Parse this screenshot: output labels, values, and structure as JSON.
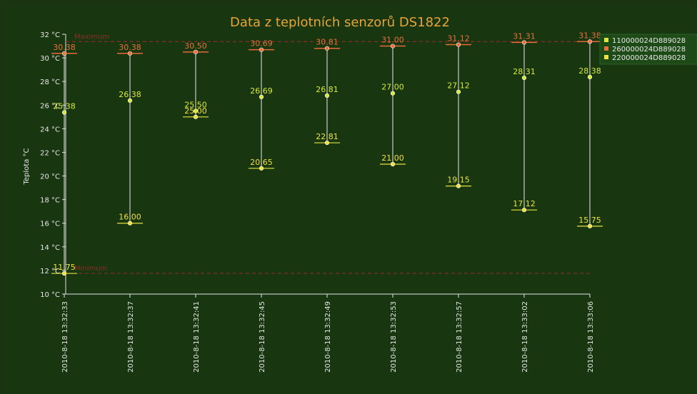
{
  "chart_data": {
    "type": "scatter",
    "title": "Data z teplotních senzorů DS1822",
    "ylabel": "Teplota °C",
    "xlabel": "",
    "ylim": [
      10,
      32
    ],
    "yticks": [
      10,
      12,
      14,
      16,
      18,
      20,
      22,
      24,
      26,
      28,
      30,
      32
    ],
    "ytick_suffix": " °C",
    "categories": [
      "2010-8-18 13:32:33",
      "2010-8-18 13:32:37",
      "2010-8-18 13:32:41",
      "2010-8-18 13:32:45",
      "2010-8-18 13:32:49",
      "2010-8-18 13:32:53",
      "2010-8-18 13:32:57",
      "2010-8-18 13:33:02",
      "2010-8-18 13:33:06"
    ],
    "series": [
      {
        "name": "110000024D889028",
        "color": "#d8e83a",
        "values": [
          25.38,
          26.38,
          25.5,
          26.69,
          26.81,
          27.0,
          27.12,
          28.31,
          28.38
        ],
        "labels": [
          "25.38",
          "26.38",
          "25.50",
          "26.69",
          "26.81",
          "27.00",
          "27.12",
          "28.31",
          "28.38"
        ]
      },
      {
        "name": "260000024D889028",
        "color": "#e8703a",
        "values": [
          30.38,
          30.38,
          30.5,
          30.69,
          30.81,
          31.0,
          31.12,
          31.31,
          31.38
        ],
        "labels": [
          "30.38",
          "30.38",
          "30.50",
          "30.69",
          "30.81",
          "31.00",
          "31.12",
          "31.31",
          "31.38"
        ]
      },
      {
        "name": "220000024D889028",
        "color": "#f0e040",
        "values": [
          11.75,
          16.0,
          25.0,
          20.65,
          22.81,
          21.0,
          19.15,
          17.12,
          15.75
        ],
        "labels": [
          "11.75",
          "16.00",
          "25.00",
          "20.65",
          "22.81",
          "21.00",
          "19.15",
          "17.12",
          "15.75"
        ]
      }
    ],
    "reference_lines": [
      {
        "label": "Maximum",
        "value": 31.38,
        "color": "#8a2e28"
      },
      {
        "label": "Minimum",
        "value": 11.75,
        "color": "#8a2e28"
      }
    ],
    "legend": "top-right",
    "colors": {
      "background": "#18360f",
      "title": "#e8a43a",
      "axis": "#e6e6e6",
      "whisker": "#c8c8c8",
      "max_tick": "#e86a3a",
      "min_tick": "#e6e040"
    }
  }
}
